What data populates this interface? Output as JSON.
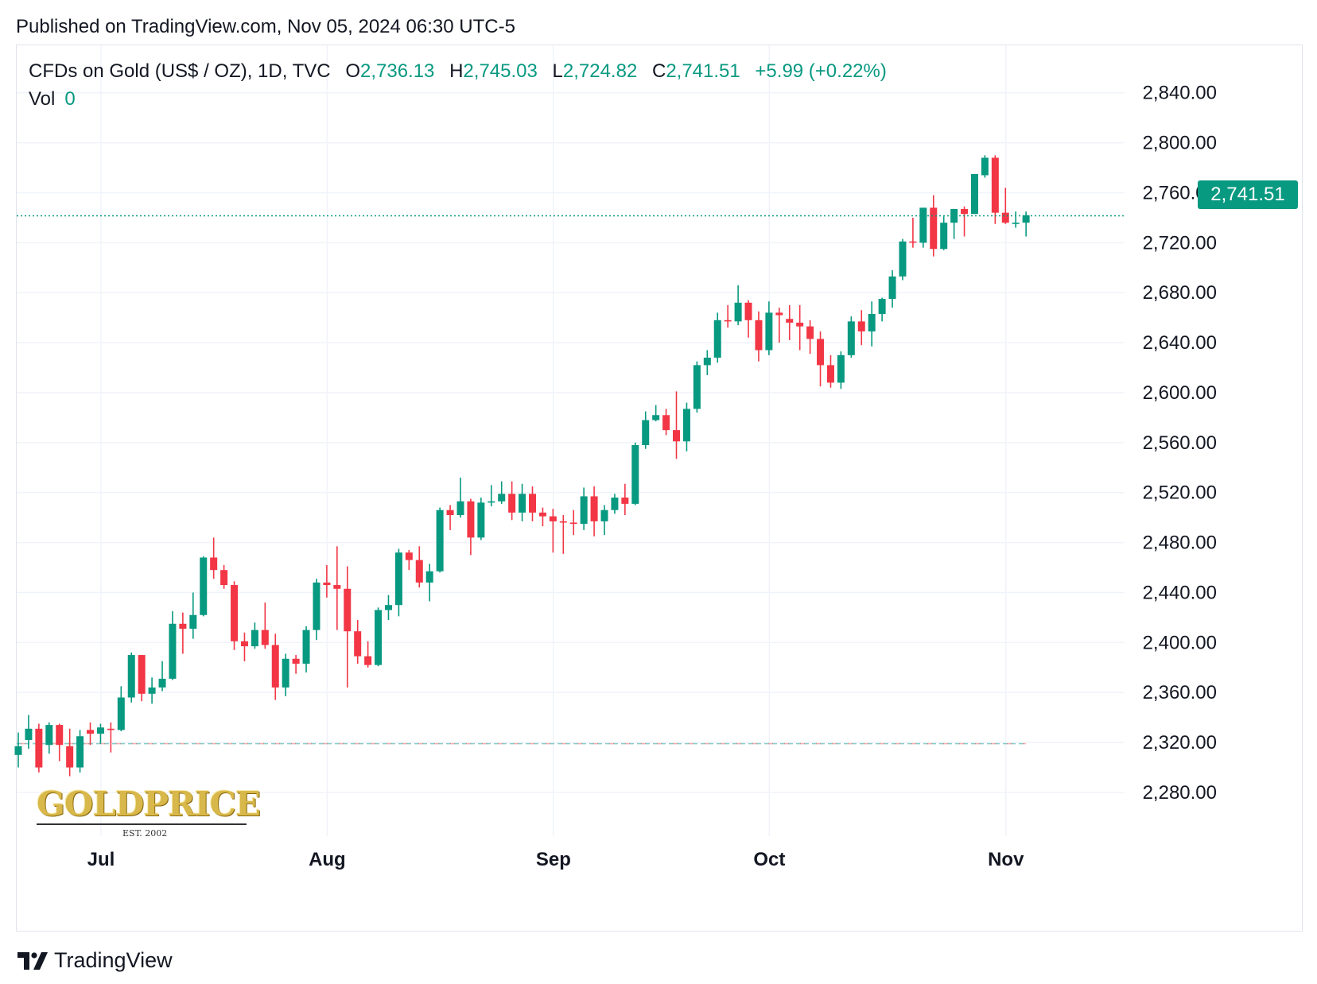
{
  "header": {
    "published": "Published on TradingView.com, Nov 05, 2024 06:30 UTC-5"
  },
  "legend": {
    "symbol": "CFDs on Gold (US$ / OZ), 1D, TVC",
    "open_label": "O",
    "open": "2,736.13",
    "high_label": "H",
    "high": "2,745.03",
    "low_label": "L",
    "low": "2,724.82",
    "close_label": "C",
    "close": "2,741.51",
    "change": "+5.99 (+0.22%)",
    "vol_label": "Vol",
    "vol": "0"
  },
  "last_price": "2,741.51",
  "watermark": {
    "logo": "GOLDPRICE",
    "est": "EST. 2002"
  },
  "footer": {
    "brand": "TradingView"
  },
  "colors": {
    "up": "#089981",
    "down": "#f23645",
    "grid": "#f0f3fa"
  },
  "chart_data": {
    "type": "candlestick",
    "y_ticks": [
      "2,840.00",
      "2,800.00",
      "2,760.00",
      "2,720.00",
      "2,680.00",
      "2,640.00",
      "2,600.00",
      "2,560.00",
      "2,520.00",
      "2,480.00",
      "2,440.00",
      "2,400.00",
      "2,360.00",
      "2,320.00",
      "2,280.00"
    ],
    "x_ticks": [
      "Jul",
      "Aug",
      "Sep",
      "Oct",
      "Nov"
    ],
    "ylim": [
      2245,
      2878
    ],
    "last_price": 2741.51,
    "candles": [
      {
        "date": "2024-06-19",
        "o": 2310,
        "h": 2328,
        "l": 2300,
        "c": 2317
      },
      {
        "date": "2024-06-20",
        "o": 2322,
        "h": 2342,
        "l": 2315,
        "c": 2331
      },
      {
        "date": "2024-06-21",
        "o": 2331,
        "h": 2335,
        "l": 2296,
        "c": 2300
      },
      {
        "date": "2024-06-24",
        "o": 2318,
        "h": 2336,
        "l": 2311,
        "c": 2334
      },
      {
        "date": "2024-06-25",
        "o": 2334,
        "h": 2335,
        "l": 2305,
        "c": 2318
      },
      {
        "date": "2024-06-26",
        "o": 2317,
        "h": 2331,
        "l": 2293,
        "c": 2300
      },
      {
        "date": "2024-06-27",
        "o": 2300,
        "h": 2330,
        "l": 2296,
        "c": 2325
      },
      {
        "date": "2024-06-28",
        "o": 2330,
        "h": 2336,
        "l": 2318,
        "c": 2327
      },
      {
        "date": "2024-07-01",
        "o": 2327,
        "h": 2335,
        "l": 2319,
        "c": 2332
      },
      {
        "date": "2024-07-02",
        "o": 2331,
        "h": 2336,
        "l": 2312,
        "c": 2330
      },
      {
        "date": "2024-07-03",
        "o": 2330,
        "h": 2365,
        "l": 2329,
        "c": 2356
      },
      {
        "date": "2024-07-05",
        "o": 2356,
        "h": 2392,
        "l": 2352,
        "c": 2390
      },
      {
        "date": "2024-07-08",
        "o": 2390,
        "h": 2390,
        "l": 2353,
        "c": 2359
      },
      {
        "date": "2024-07-09",
        "o": 2359,
        "h": 2372,
        "l": 2351,
        "c": 2364
      },
      {
        "date": "2024-07-10",
        "o": 2364,
        "h": 2385,
        "l": 2361,
        "c": 2371
      },
      {
        "date": "2024-07-11",
        "o": 2371,
        "h": 2425,
        "l": 2370,
        "c": 2415
      },
      {
        "date": "2024-07-12",
        "o": 2415,
        "h": 2424,
        "l": 2391,
        "c": 2411
      },
      {
        "date": "2024-07-15",
        "o": 2411,
        "h": 2440,
        "l": 2403,
        "c": 2422
      },
      {
        "date": "2024-07-16",
        "o": 2422,
        "h": 2469,
        "l": 2421,
        "c": 2468
      },
      {
        "date": "2024-07-17",
        "o": 2468,
        "h": 2484,
        "l": 2451,
        "c": 2458
      },
      {
        "date": "2024-07-18",
        "o": 2458,
        "h": 2462,
        "l": 2443,
        "c": 2446
      },
      {
        "date": "2024-07-19",
        "o": 2446,
        "h": 2449,
        "l": 2394,
        "c": 2401
      },
      {
        "date": "2024-07-22",
        "o": 2401,
        "h": 2408,
        "l": 2385,
        "c": 2397
      },
      {
        "date": "2024-07-23",
        "o": 2397,
        "h": 2416,
        "l": 2395,
        "c": 2410
      },
      {
        "date": "2024-07-24",
        "o": 2410,
        "h": 2432,
        "l": 2395,
        "c": 2398
      },
      {
        "date": "2024-07-25",
        "o": 2398,
        "h": 2407,
        "l": 2354,
        "c": 2364
      },
      {
        "date": "2024-07-26",
        "o": 2364,
        "h": 2391,
        "l": 2357,
        "c": 2387
      },
      {
        "date": "2024-07-29",
        "o": 2387,
        "h": 2390,
        "l": 2375,
        "c": 2383
      },
      {
        "date": "2024-07-30",
        "o": 2383,
        "h": 2413,
        "l": 2376,
        "c": 2410
      },
      {
        "date": "2024-07-31",
        "o": 2410,
        "h": 2451,
        "l": 2402,
        "c": 2448
      },
      {
        "date": "2024-08-01",
        "o": 2448,
        "h": 2462,
        "l": 2436,
        "c": 2446
      },
      {
        "date": "2024-08-02",
        "o": 2446,
        "h": 2477,
        "l": 2410,
        "c": 2443
      },
      {
        "date": "2024-08-05",
        "o": 2443,
        "h": 2461,
        "l": 2364,
        "c": 2409
      },
      {
        "date": "2024-08-06",
        "o": 2409,
        "h": 2418,
        "l": 2383,
        "c": 2389
      },
      {
        "date": "2024-08-07",
        "o": 2389,
        "h": 2401,
        "l": 2380,
        "c": 2382
      },
      {
        "date": "2024-08-08",
        "o": 2382,
        "h": 2428,
        "l": 2381,
        "c": 2426
      },
      {
        "date": "2024-08-09",
        "o": 2426,
        "h": 2438,
        "l": 2418,
        "c": 2430
      },
      {
        "date": "2024-08-12",
        "o": 2430,
        "h": 2475,
        "l": 2421,
        "c": 2472
      },
      {
        "date": "2024-08-13",
        "o": 2472,
        "h": 2474,
        "l": 2458,
        "c": 2466
      },
      {
        "date": "2024-08-14",
        "o": 2466,
        "h": 2477,
        "l": 2444,
        "c": 2448
      },
      {
        "date": "2024-08-15",
        "o": 2448,
        "h": 2463,
        "l": 2433,
        "c": 2457
      },
      {
        "date": "2024-08-16",
        "o": 2457,
        "h": 2508,
        "l": 2456,
        "c": 2506
      },
      {
        "date": "2024-08-19",
        "o": 2506,
        "h": 2510,
        "l": 2490,
        "c": 2502
      },
      {
        "date": "2024-08-20",
        "o": 2502,
        "h": 2532,
        "l": 2500,
        "c": 2513
      },
      {
        "date": "2024-08-21",
        "o": 2513,
        "h": 2515,
        "l": 2470,
        "c": 2484
      },
      {
        "date": "2024-08-22",
        "o": 2484,
        "h": 2516,
        "l": 2482,
        "c": 2512
      },
      {
        "date": "2024-08-23",
        "o": 2512,
        "h": 2526,
        "l": 2509,
        "c": 2513
      },
      {
        "date": "2024-08-26",
        "o": 2513,
        "h": 2529,
        "l": 2511,
        "c": 2519
      },
      {
        "date": "2024-08-27",
        "o": 2519,
        "h": 2529,
        "l": 2498,
        "c": 2504
      },
      {
        "date": "2024-08-28",
        "o": 2504,
        "h": 2527,
        "l": 2497,
        "c": 2519
      },
      {
        "date": "2024-08-29",
        "o": 2519,
        "h": 2525,
        "l": 2497,
        "c": 2504
      },
      {
        "date": "2024-08-30",
        "o": 2504,
        "h": 2508,
        "l": 2493,
        "c": 2501
      },
      {
        "date": "2024-09-02",
        "o": 2501,
        "h": 2507,
        "l": 2472,
        "c": 2497
      },
      {
        "date": "2024-09-03",
        "o": 2497,
        "h": 2502,
        "l": 2471,
        "c": 2496
      },
      {
        "date": "2024-09-04",
        "o": 2496,
        "h": 2506,
        "l": 2486,
        "c": 2495
      },
      {
        "date": "2024-09-05",
        "o": 2495,
        "h": 2524,
        "l": 2490,
        "c": 2517
      },
      {
        "date": "2024-09-06",
        "o": 2517,
        "h": 2525,
        "l": 2485,
        "c": 2497
      },
      {
        "date": "2024-09-09",
        "o": 2497,
        "h": 2510,
        "l": 2486,
        "c": 2506
      },
      {
        "date": "2024-09-10",
        "o": 2506,
        "h": 2519,
        "l": 2503,
        "c": 2516
      },
      {
        "date": "2024-09-11",
        "o": 2516,
        "h": 2527,
        "l": 2502,
        "c": 2511
      },
      {
        "date": "2024-09-12",
        "o": 2511,
        "h": 2560,
        "l": 2510,
        "c": 2558
      },
      {
        "date": "2024-09-13",
        "o": 2558,
        "h": 2585,
        "l": 2555,
        "c": 2578
      },
      {
        "date": "2024-09-16",
        "o": 2578,
        "h": 2590,
        "l": 2577,
        "c": 2582
      },
      {
        "date": "2024-09-17",
        "o": 2582,
        "h": 2587,
        "l": 2566,
        "c": 2570
      },
      {
        "date": "2024-09-18",
        "o": 2570,
        "h": 2601,
        "l": 2547,
        "c": 2561
      },
      {
        "date": "2024-09-19",
        "o": 2561,
        "h": 2592,
        "l": 2553,
        "c": 2587
      },
      {
        "date": "2024-09-20",
        "o": 2587,
        "h": 2625,
        "l": 2584,
        "c": 2622
      },
      {
        "date": "2024-09-23",
        "o": 2622,
        "h": 2634,
        "l": 2614,
        "c": 2628
      },
      {
        "date": "2024-09-24",
        "o": 2628,
        "h": 2664,
        "l": 2624,
        "c": 2658
      },
      {
        "date": "2024-09-25",
        "o": 2658,
        "h": 2670,
        "l": 2652,
        "c": 2657
      },
      {
        "date": "2024-09-26",
        "o": 2657,
        "h": 2686,
        "l": 2654,
        "c": 2672
      },
      {
        "date": "2024-09-27",
        "o": 2672,
        "h": 2674,
        "l": 2644,
        "c": 2658
      },
      {
        "date": "2024-09-30",
        "o": 2658,
        "h": 2665,
        "l": 2625,
        "c": 2634
      },
      {
        "date": "2024-10-01",
        "o": 2634,
        "h": 2673,
        "l": 2630,
        "c": 2664
      },
      {
        "date": "2024-10-02",
        "o": 2664,
        "h": 2668,
        "l": 2640,
        "c": 2662
      },
      {
        "date": "2024-10-03",
        "o": 2659,
        "h": 2670,
        "l": 2642,
        "c": 2656
      },
      {
        "date": "2024-10-04",
        "o": 2656,
        "h": 2670,
        "l": 2634,
        "c": 2653
      },
      {
        "date": "2024-10-07",
        "o": 2653,
        "h": 2658,
        "l": 2631,
        "c": 2643
      },
      {
        "date": "2024-10-08",
        "o": 2643,
        "h": 2649,
        "l": 2605,
        "c": 2622
      },
      {
        "date": "2024-10-09",
        "o": 2622,
        "h": 2630,
        "l": 2604,
        "c": 2608
      },
      {
        "date": "2024-10-10",
        "o": 2608,
        "h": 2633,
        "l": 2603,
        "c": 2630
      },
      {
        "date": "2024-10-11",
        "o": 2630,
        "h": 2661,
        "l": 2628,
        "c": 2657
      },
      {
        "date": "2024-10-14",
        "o": 2657,
        "h": 2666,
        "l": 2638,
        "c": 2649
      },
      {
        "date": "2024-10-15",
        "o": 2649,
        "h": 2673,
        "l": 2637,
        "c": 2663
      },
      {
        "date": "2024-10-16",
        "o": 2663,
        "h": 2676,
        "l": 2657,
        "c": 2675
      },
      {
        "date": "2024-10-17",
        "o": 2675,
        "h": 2698,
        "l": 2668,
        "c": 2693
      },
      {
        "date": "2024-10-18",
        "o": 2693,
        "h": 2723,
        "l": 2690,
        "c": 2721
      },
      {
        "date": "2024-10-21",
        "o": 2721,
        "h": 2740,
        "l": 2716,
        "c": 2720
      },
      {
        "date": "2024-10-22",
        "o": 2720,
        "h": 2748,
        "l": 2716,
        "c": 2748
      },
      {
        "date": "2024-10-23",
        "o": 2748,
        "h": 2758,
        "l": 2709,
        "c": 2715
      },
      {
        "date": "2024-10-24",
        "o": 2715,
        "h": 2741,
        "l": 2714,
        "c": 2736
      },
      {
        "date": "2024-10-25",
        "o": 2736,
        "h": 2747,
        "l": 2723,
        "c": 2747
      },
      {
        "date": "2024-10-28",
        "o": 2747,
        "h": 2749,
        "l": 2725,
        "c": 2743
      },
      {
        "date": "2024-10-29",
        "o": 2743,
        "h": 2775,
        "l": 2743,
        "c": 2775
      },
      {
        "date": "2024-10-30",
        "o": 2774,
        "h": 2790,
        "l": 2772,
        "c": 2788
      },
      {
        "date": "2024-10-31",
        "o": 2788,
        "h": 2790,
        "l": 2735,
        "c": 2744
      },
      {
        "date": "2024-11-01",
        "o": 2744,
        "h": 2764,
        "l": 2735,
        "c": 2736
      },
      {
        "date": "2024-11-04",
        "o": 2736,
        "h": 2745,
        "l": 2732,
        "c": 2736
      },
      {
        "date": "2024-11-05",
        "o": 2736,
        "h": 2745,
        "l": 2725,
        "c": 2742
      }
    ]
  }
}
